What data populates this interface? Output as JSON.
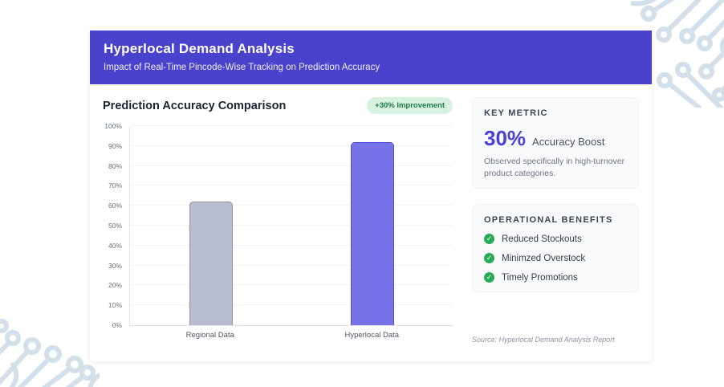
{
  "page": {
    "header": {
      "title": "Hyperlocal Demand Analysis",
      "subtitle": "Impact of Real-Time Pincode-Wise Tracking on Prediction Accuracy"
    },
    "chart_section": {
      "title": "Prediction Accuracy Comparison",
      "badge": "+30% Improvement"
    },
    "key_metric": {
      "label": "KEY METRIC",
      "value": "30%",
      "value_suffix": "Accuracy Boost",
      "description": "Observed specifically in high-turnover product categories."
    },
    "benefits": {
      "label": "OPERATIONAL BENEFITS",
      "items": [
        "Reduced Stockouts",
        "Minimzed Overstock",
        "Timely Promotions"
      ]
    },
    "source": "Source: Hyperlocal Demand Analysis Report"
  },
  "colors": {
    "header_bg": "#4a42cc",
    "badge_bg": "#d8f2e2",
    "badge_text": "#1f7a47",
    "metric_accent": "#4b40d8",
    "check_green": "#27ab59",
    "circuit": "#d3e0ea"
  },
  "chart_data": {
    "type": "bar",
    "title": "Prediction Accuracy Comparison",
    "categories": [
      "Regional Data",
      "Hyperlocal Data"
    ],
    "values": [
      62,
      92
    ],
    "unit": "%",
    "xlabel": "",
    "ylabel": "",
    "ylim": [
      0,
      100
    ],
    "ytick_step": 10,
    "grid": true,
    "legend": false,
    "bar_colors": [
      "#b7bdcf",
      "#7672e8"
    ],
    "bar_borders": [
      "#8f97ac",
      "#544ae0"
    ],
    "annotation": "+30% Improvement"
  }
}
